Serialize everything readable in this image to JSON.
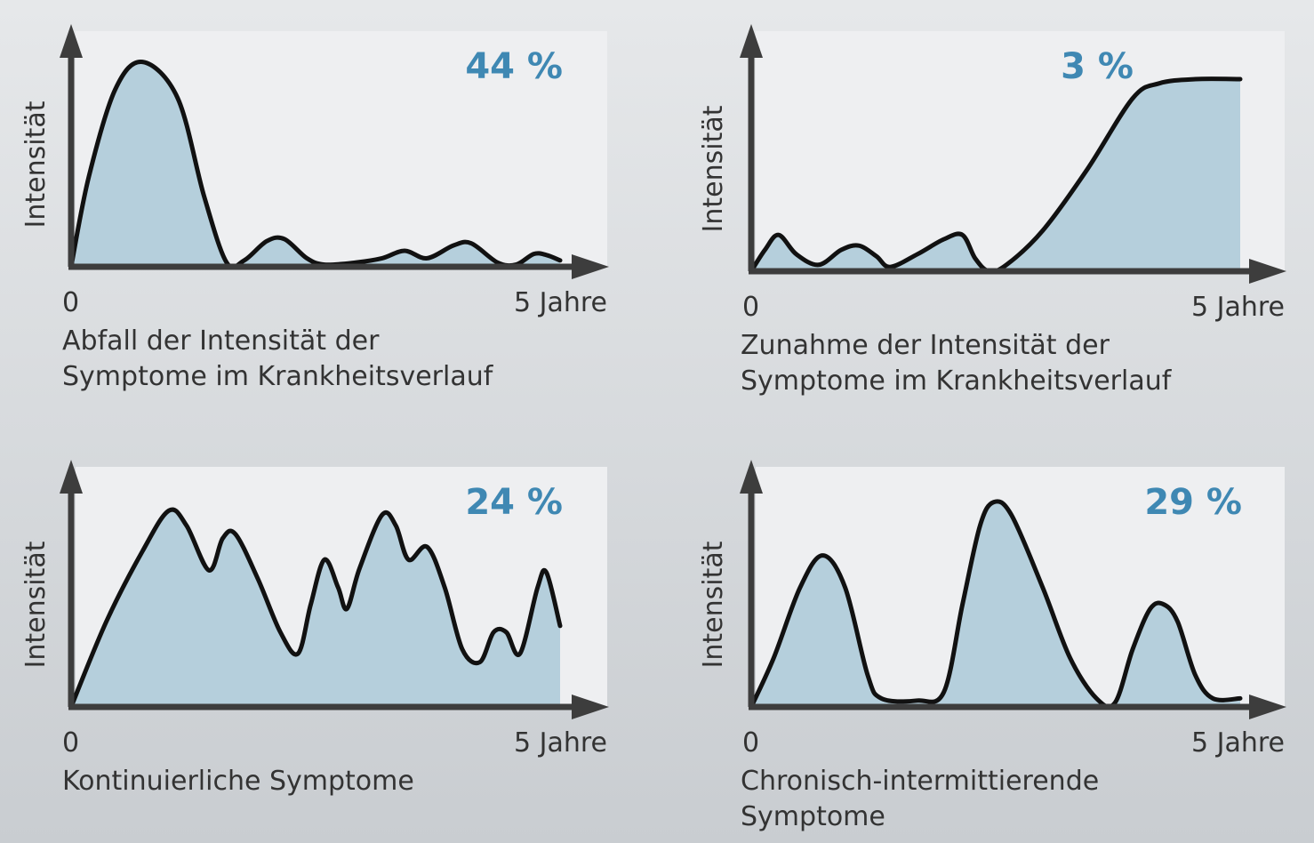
{
  "chart_data": [
    {
      "type": "area",
      "percent_label": "44 %",
      "ylabel": "Intensität",
      "x_tick_start": "0",
      "x_tick_end": "5 Jahre",
      "caption": [
        "Abfall der Intensität der",
        "Symptome im Krankheitsverlauf"
      ],
      "xlim": [
        0,
        5
      ],
      "ylim": [
        0,
        1
      ],
      "points": [
        [
          0,
          0
        ],
        [
          0.18,
          0.42
        ],
        [
          0.45,
          0.83
        ],
        [
          0.73,
          0.96
        ],
        [
          1.09,
          0.79
        ],
        [
          1.36,
          0.33
        ],
        [
          1.59,
          0.02
        ],
        [
          1.77,
          0.03
        ],
        [
          2.0,
          0.12
        ],
        [
          2.18,
          0.13
        ],
        [
          2.41,
          0.04
        ],
        [
          2.59,
          0.01
        ],
        [
          2.91,
          0.02
        ],
        [
          3.18,
          0.04
        ],
        [
          3.41,
          0.075
        ],
        [
          3.64,
          0.04
        ],
        [
          3.91,
          0.1
        ],
        [
          4.09,
          0.11
        ],
        [
          4.36,
          0.02
        ],
        [
          4.55,
          0.01
        ],
        [
          4.73,
          0.06
        ],
        [
          4.86,
          0.055
        ],
        [
          5.0,
          0.03
        ]
      ]
    },
    {
      "type": "area",
      "percent_label": "3 %",
      "ylabel": "Intensität",
      "x_tick_start": "0",
      "x_tick_end": "5 Jahre",
      "caption": [
        "Zunahme der Intensität der",
        "Symptome im Krankheitsverlauf"
      ],
      "xlim": [
        0,
        5
      ],
      "ylim": [
        0,
        1
      ],
      "points": [
        [
          0,
          0
        ],
        [
          0.14,
          0.1
        ],
        [
          0.28,
          0.17
        ],
        [
          0.46,
          0.08
        ],
        [
          0.69,
          0.03
        ],
        [
          0.92,
          0.1
        ],
        [
          1.1,
          0.12
        ],
        [
          1.28,
          0.07
        ],
        [
          1.42,
          0.02
        ],
        [
          1.7,
          0.08
        ],
        [
          1.97,
          0.15
        ],
        [
          2.16,
          0.17
        ],
        [
          2.29,
          0.06
        ],
        [
          2.43,
          0
        ],
        [
          2.61,
          0.03
        ],
        [
          2.98,
          0.19
        ],
        [
          3.44,
          0.48
        ],
        [
          3.9,
          0.81
        ],
        [
          4.17,
          0.88
        ],
        [
          4.54,
          0.9
        ],
        [
          5.0,
          0.9
        ]
      ]
    },
    {
      "type": "area",
      "percent_label": "24 %",
      "ylabel": "Intensität",
      "x_tick_start": "0",
      "x_tick_end": "5 Jahre",
      "caption": [
        "Kontinuierliche Symptome"
      ],
      "xlim": [
        0,
        5
      ],
      "ylim": [
        0,
        1
      ],
      "points": [
        [
          0,
          0
        ],
        [
          0.36,
          0.4
        ],
        [
          0.73,
          0.73
        ],
        [
          1.0,
          0.92
        ],
        [
          1.18,
          0.85
        ],
        [
          1.41,
          0.64
        ],
        [
          1.55,
          0.79
        ],
        [
          1.68,
          0.81
        ],
        [
          1.91,
          0.6
        ],
        [
          2.14,
          0.35
        ],
        [
          2.32,
          0.25
        ],
        [
          2.45,
          0.48
        ],
        [
          2.59,
          0.69
        ],
        [
          2.73,
          0.56
        ],
        [
          2.82,
          0.46
        ],
        [
          2.95,
          0.65
        ],
        [
          3.18,
          0.9
        ],
        [
          3.32,
          0.85
        ],
        [
          3.45,
          0.69
        ],
        [
          3.64,
          0.75
        ],
        [
          3.82,
          0.56
        ],
        [
          4.0,
          0.27
        ],
        [
          4.18,
          0.21
        ],
        [
          4.32,
          0.35
        ],
        [
          4.45,
          0.35
        ],
        [
          4.59,
          0.25
        ],
        [
          4.77,
          0.56
        ],
        [
          4.86,
          0.63
        ],
        [
          5.0,
          0.38
        ]
      ]
    },
    {
      "type": "area",
      "percent_label": "29 %",
      "ylabel": "Intensität",
      "x_tick_start": "0",
      "x_tick_end": "5 Jahre",
      "caption": [
        "Chronisch-intermittierende",
        "Symptome"
      ],
      "xlim": [
        0,
        5
      ],
      "ylim": [
        0,
        1
      ],
      "points": [
        [
          0,
          0
        ],
        [
          0.23,
          0.23
        ],
        [
          0.5,
          0.56
        ],
        [
          0.73,
          0.71
        ],
        [
          0.96,
          0.56
        ],
        [
          1.19,
          0.15
        ],
        [
          1.33,
          0.04
        ],
        [
          1.7,
          0.03
        ],
        [
          1.97,
          0.07
        ],
        [
          2.16,
          0.48
        ],
        [
          2.34,
          0.85
        ],
        [
          2.48,
          0.96
        ],
        [
          2.66,
          0.9
        ],
        [
          2.98,
          0.56
        ],
        [
          3.26,
          0.23
        ],
        [
          3.53,
          0.04
        ],
        [
          3.72,
          0.02
        ],
        [
          3.9,
          0.27
        ],
        [
          4.08,
          0.46
        ],
        [
          4.22,
          0.48
        ],
        [
          4.36,
          0.4
        ],
        [
          4.54,
          0.15
        ],
        [
          4.72,
          0.04
        ],
        [
          5.0,
          0.04
        ]
      ]
    }
  ],
  "colors": {
    "fill": "#b5cfdc",
    "line": "#111111",
    "axis": "#3d3d3d",
    "percent": "#3f88b3",
    "panel": "#eeeff1"
  }
}
